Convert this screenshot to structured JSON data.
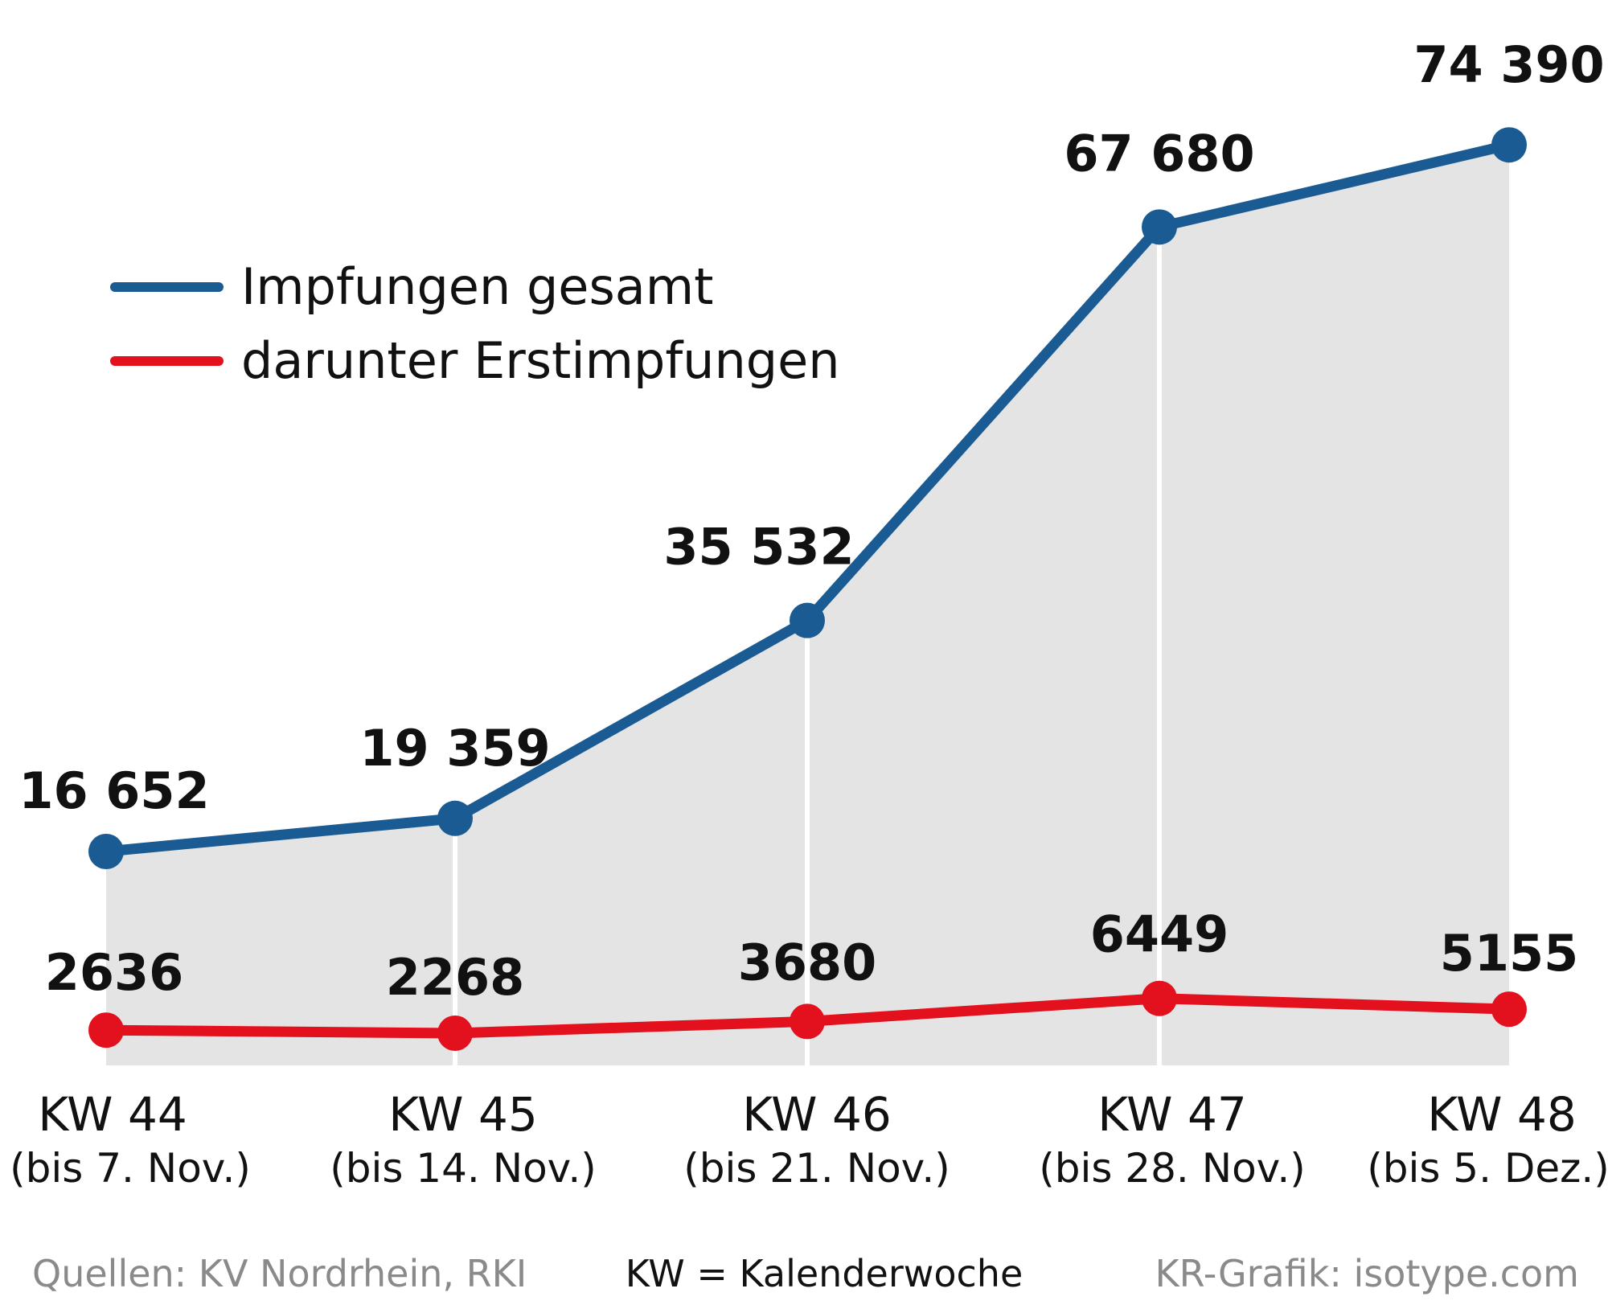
{
  "chart_data": {
    "type": "line",
    "categories": [
      "KW 44",
      "KW 45",
      "KW 46",
      "KW 47",
      "KW 48"
    ],
    "category_sublabels": [
      "(bis 7. Nov.)",
      "(bis 14. Nov.)",
      "(bis 21. Nov.)",
      "(bis 28. Nov.)",
      "(bis 5. Dez.)"
    ],
    "series": [
      {
        "name": "Impfungen gesamt",
        "color": "#1a5b93",
        "values": [
          16652,
          19359,
          35532,
          67680,
          74390
        ],
        "labels": [
          "16 652",
          "19 359",
          "35 532",
          "67 680",
          "74 390"
        ]
      },
      {
        "name": "darunter Erstimpfungen",
        "color": "#e3101d",
        "values": [
          2636,
          2268,
          3680,
          6449,
          5155
        ],
        "labels": [
          "2636",
          "2268",
          "3680",
          "6449",
          "5155"
        ]
      }
    ],
    "area_fill": "#e4e4e4",
    "ylim": [
      0,
      80000
    ],
    "grid": false,
    "legend_position": "top-left"
  },
  "footer": {
    "source": "Quellen: KV Nordrhein, RKI",
    "note": "KW = Kalenderwoche",
    "credit": "KR-Grafik: isotype.com"
  }
}
